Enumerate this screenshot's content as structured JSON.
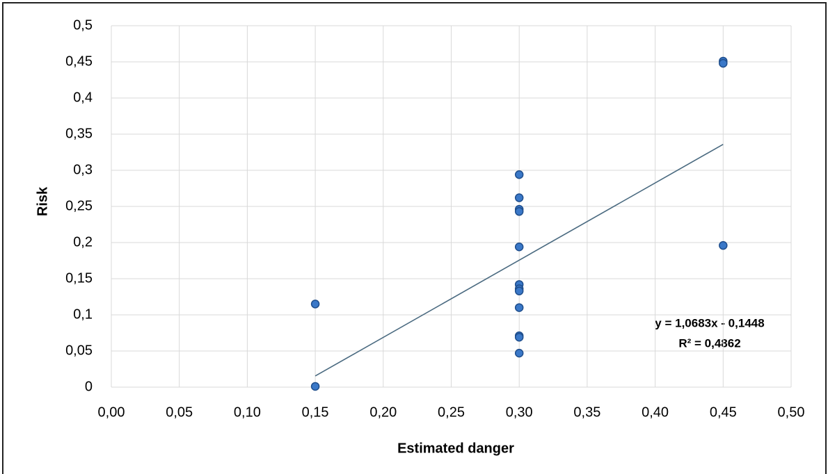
{
  "chart_data": {
    "type": "scatter",
    "x_label": "Estimated danger",
    "y_label": "Risk",
    "series": [
      {
        "color": "#3a78c8",
        "x": [
          0.15,
          0.15,
          0.3,
          0.3,
          0.3,
          0.3,
          0.3,
          0.3,
          0.3,
          0.3,
          0.3,
          0.3,
          0.3,
          0.3,
          0.45,
          0.45,
          0.45
        ],
        "values": [
          0.115,
          0.001,
          0.294,
          0.262,
          0.246,
          0.243,
          0.194,
          0.142,
          0.136,
          0.133,
          0.11,
          0.071,
          0.069,
          0.047,
          0.451,
          0.448,
          0.196
        ]
      }
    ],
    "trendline": {
      "color": "#4a6a80",
      "x": [
        0.15,
        0.45
      ],
      "values": [
        0.0154,
        0.3359
      ]
    },
    "annotations": [
      "y = 1,0683x  - 0,1448",
      "R² = 0,4862"
    ],
    "xlim": [
      0,
      0.5
    ],
    "ylim": [
      0,
      0.5
    ],
    "xticks": [
      {
        "value": 0,
        "label": "0,00"
      },
      {
        "value": 0.05,
        "label": "0,05"
      },
      {
        "value": 0.1,
        "label": "0,10"
      },
      {
        "value": 0.15,
        "label": "0,15"
      },
      {
        "value": 0.2,
        "label": "0,20"
      },
      {
        "value": 0.25,
        "label": "0,25"
      },
      {
        "value": 0.3,
        "label": "0,30"
      },
      {
        "value": 0.35,
        "label": "0,35"
      },
      {
        "value": 0.4,
        "label": "0,40"
      },
      {
        "value": 0.45,
        "label": "0,45"
      },
      {
        "value": 0.5,
        "label": "0,50"
      }
    ],
    "yticks": [
      0,
      {
        "value": 0.05,
        "label": "0,05"
      },
      {
        "value": 0.1,
        "label": "0,1"
      },
      {
        "value": 0.15,
        "label": "0,15"
      },
      {
        "value": 0.2,
        "label": "0,2"
      },
      {
        "value": 0.25,
        "label": "0,25"
      },
      {
        "value": 0.3,
        "label": "0,3"
      },
      {
        "value": 0.35,
        "label": "0,35"
      },
      {
        "value": 0.4,
        "label": "0,4"
      },
      {
        "value": 0.45,
        "label": "0,45"
      },
      {
        "value": 0.5,
        "label": "0,5"
      }
    ],
    "grid": true
  }
}
